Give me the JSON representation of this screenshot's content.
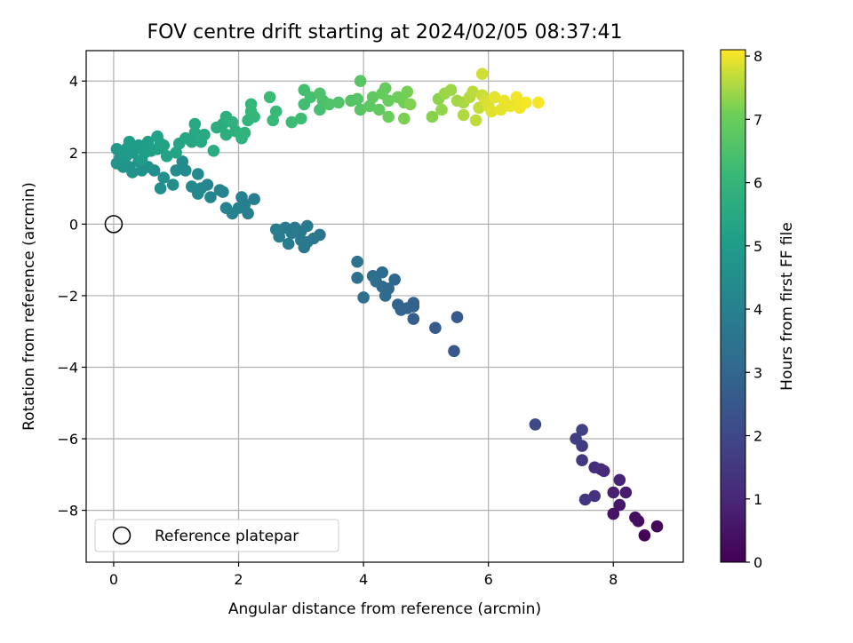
{
  "chart_data": {
    "type": "scatter",
    "title": "FOV centre drift starting at 2024/02/05 08:37:41",
    "xlabel": "Angular distance from reference (arcmin)",
    "ylabel": "Rotation from reference (arcmin)",
    "xlim": [
      -0.44,
      9.12
    ],
    "ylim": [
      -9.45,
      4.85
    ],
    "x_ticks": [
      "0",
      "2",
      "4",
      "6",
      "8"
    ],
    "y_ticks": [
      "−8",
      "−6",
      "−4",
      "−2",
      "0",
      "2",
      "4"
    ],
    "grid": true,
    "legend": {
      "placement": "lower-left",
      "entries": [
        "Reference platepar"
      ]
    },
    "reference_point": {
      "x": 0,
      "y": 0
    },
    "colorbar": {
      "label": "Hours from first FF file",
      "range": [
        0,
        8.1
      ],
      "ticks": [
        "0",
        "1",
        "2",
        "3",
        "4",
        "5",
        "6",
        "7",
        "8"
      ],
      "colormap": "viridis"
    },
    "series": [
      {
        "points": [
          [
            8.5,
            -8.7,
            0.1
          ],
          [
            8.7,
            -8.45,
            0.2
          ],
          [
            8.4,
            -8.3,
            0.3
          ],
          [
            8.35,
            -8.2,
            0.4
          ],
          [
            8.0,
            -8.1,
            0.5
          ],
          [
            8.1,
            -7.85,
            0.6
          ],
          [
            8.2,
            -7.5,
            0.7
          ],
          [
            8.0,
            -7.5,
            0.8
          ],
          [
            8.1,
            -7.15,
            0.9
          ],
          [
            7.85,
            -6.9,
            1.0
          ],
          [
            7.8,
            -6.85,
            1.1
          ],
          [
            7.7,
            -6.8,
            1.2
          ],
          [
            7.7,
            -7.6,
            1.3
          ],
          [
            7.55,
            -7.7,
            1.4
          ],
          [
            7.5,
            -6.6,
            1.5
          ],
          [
            7.5,
            -6.2,
            1.6
          ],
          [
            7.4,
            -6.0,
            1.7
          ],
          [
            7.5,
            -5.75,
            1.8
          ],
          [
            6.75,
            -5.6,
            2.0
          ],
          [
            5.45,
            -3.55,
            2.5
          ],
          [
            5.5,
            -2.6,
            2.55
          ],
          [
            5.15,
            -2.9,
            2.6
          ],
          [
            4.8,
            -2.65,
            2.7
          ],
          [
            4.8,
            -2.3,
            2.75
          ],
          [
            4.8,
            -2.2,
            2.8
          ],
          [
            4.7,
            -2.35,
            2.85
          ],
          [
            4.6,
            -2.4,
            2.9
          ],
          [
            4.55,
            -2.25,
            2.95
          ],
          [
            4.5,
            -1.55,
            3.0
          ],
          [
            4.4,
            -1.8,
            3.05
          ],
          [
            4.35,
            -2.0,
            3.1
          ],
          [
            4.3,
            -1.75,
            3.15
          ],
          [
            4.3,
            -1.35,
            3.2
          ],
          [
            4.2,
            -1.6,
            3.25
          ],
          [
            4.15,
            -1.45,
            3.3
          ],
          [
            4.0,
            -2.05,
            3.35
          ],
          [
            3.9,
            -1.5,
            3.4
          ],
          [
            3.9,
            -1.05,
            3.45
          ],
          [
            3.3,
            -0.3,
            3.6
          ],
          [
            3.2,
            -0.4,
            3.62
          ],
          [
            3.1,
            -0.5,
            3.64
          ],
          [
            3.05,
            -0.65,
            3.66
          ],
          [
            3.0,
            -0.2,
            3.68
          ],
          [
            3.0,
            -0.45,
            3.7
          ],
          [
            3.1,
            -0.05,
            3.72
          ],
          [
            2.9,
            -0.1,
            3.74
          ],
          [
            2.85,
            -0.25,
            3.76
          ],
          [
            2.8,
            -0.55,
            3.78
          ],
          [
            2.75,
            -0.1,
            3.8
          ],
          [
            2.65,
            -0.35,
            3.82
          ],
          [
            2.6,
            -0.15,
            3.84
          ],
          [
            2.25,
            0.7,
            3.9
          ],
          [
            2.15,
            0.3,
            3.93
          ],
          [
            2.1,
            0.55,
            3.96
          ],
          [
            2.05,
            0.75,
            3.99
          ],
          [
            2.0,
            0.45,
            4.02
          ],
          [
            1.9,
            0.3,
            4.05
          ],
          [
            1.8,
            0.45,
            4.08
          ],
          [
            1.75,
            0.9,
            4.11
          ],
          [
            1.7,
            0.95,
            4.14
          ],
          [
            1.55,
            0.75,
            4.17
          ],
          [
            1.5,
            1.1,
            4.2
          ],
          [
            1.4,
            1.0,
            4.23
          ],
          [
            1.35,
            0.85,
            4.26
          ],
          [
            1.35,
            1.4,
            4.29
          ],
          [
            1.25,
            1.05,
            4.32
          ],
          [
            1.15,
            1.5,
            4.35
          ],
          [
            1.1,
            1.75,
            4.38
          ],
          [
            1.0,
            1.5,
            4.41
          ],
          [
            0.95,
            1.1,
            4.44
          ],
          [
            0.8,
            1.3,
            4.47
          ],
          [
            0.75,
            1.0,
            4.5
          ],
          [
            0.65,
            1.5,
            4.53
          ],
          [
            0.55,
            1.6,
            4.56
          ],
          [
            0.45,
            1.5,
            4.59
          ],
          [
            0.4,
            1.75,
            4.62
          ],
          [
            0.3,
            1.45,
            4.65
          ],
          [
            0.25,
            1.6,
            4.68
          ],
          [
            0.15,
            1.6,
            4.71
          ],
          [
            0.05,
            1.7,
            4.74
          ],
          [
            0.1,
            1.85,
            4.77
          ],
          [
            0.2,
            1.9,
            4.8
          ],
          [
            0.15,
            2.0,
            4.83
          ],
          [
            0.3,
            2.0,
            4.86
          ],
          [
            0.05,
            2.1,
            4.89
          ],
          [
            0.2,
            2.1,
            4.92
          ],
          [
            0.35,
            2.1,
            4.95
          ],
          [
            0.25,
            2.3,
            4.98
          ],
          [
            0.4,
            2.2,
            5.01
          ],
          [
            0.45,
            1.8,
            5.04
          ],
          [
            0.5,
            2.0,
            5.07
          ],
          [
            0.55,
            2.3,
            5.1
          ],
          [
            0.6,
            2.05,
            5.13
          ],
          [
            0.7,
            2.1,
            5.16
          ],
          [
            0.75,
            2.25,
            5.19
          ],
          [
            0.7,
            2.45,
            5.22
          ],
          [
            0.8,
            2.2,
            5.25
          ],
          [
            0.85,
            1.9,
            5.28
          ],
          [
            1.0,
            2.0,
            5.31
          ],
          [
            1.05,
            2.25,
            5.34
          ],
          [
            1.15,
            2.4,
            5.37
          ],
          [
            1.25,
            2.3,
            5.4
          ],
          [
            1.3,
            2.55,
            5.43
          ],
          [
            1.4,
            2.3,
            5.46
          ],
          [
            1.45,
            2.5,
            5.49
          ],
          [
            1.3,
            2.8,
            5.52
          ],
          [
            1.6,
            2.05,
            5.58
          ],
          [
            1.65,
            2.7,
            5.62
          ],
          [
            1.75,
            2.8,
            5.66
          ],
          [
            1.8,
            2.5,
            5.7
          ],
          [
            1.8,
            3.0,
            5.74
          ],
          [
            1.9,
            2.85,
            5.78
          ],
          [
            1.95,
            2.6,
            5.82
          ],
          [
            2.05,
            2.4,
            5.86
          ],
          [
            2.1,
            2.55,
            5.9
          ],
          [
            2.15,
            2.9,
            5.94
          ],
          [
            2.25,
            3.0,
            5.98
          ],
          [
            2.2,
            3.15,
            6.02
          ],
          [
            2.2,
            3.35,
            6.06
          ],
          [
            2.55,
            2.9,
            6.1
          ],
          [
            2.6,
            3.15,
            6.14
          ],
          [
            2.5,
            3.55,
            6.18
          ],
          [
            2.85,
            2.85,
            6.22
          ],
          [
            3.0,
            2.95,
            6.26
          ],
          [
            3.05,
            3.35,
            6.3
          ],
          [
            3.05,
            3.75,
            6.34
          ],
          [
            3.15,
            3.55,
            6.38
          ],
          [
            3.3,
            3.2,
            6.42
          ],
          [
            3.35,
            3.45,
            6.46
          ],
          [
            3.3,
            3.65,
            6.5
          ],
          [
            3.45,
            3.35,
            6.54
          ],
          [
            3.6,
            3.4,
            6.58
          ],
          [
            3.8,
            3.45,
            6.62
          ],
          [
            3.9,
            3.5,
            6.66
          ],
          [
            3.95,
            3.2,
            6.7
          ],
          [
            3.95,
            4.0,
            6.74
          ],
          [
            4.1,
            3.3,
            6.78
          ],
          [
            4.15,
            3.55,
            6.82
          ],
          [
            4.25,
            3.2,
            6.86
          ],
          [
            4.3,
            3.65,
            6.9
          ],
          [
            4.35,
            3.8,
            6.94
          ],
          [
            4.4,
            3.45,
            6.98
          ],
          [
            4.4,
            3.0,
            7.02
          ],
          [
            4.55,
            3.55,
            7.06
          ],
          [
            4.65,
            3.4,
            7.1
          ],
          [
            4.7,
            3.7,
            7.14
          ],
          [
            4.65,
            2.95,
            7.18
          ],
          [
            4.75,
            3.35,
            7.22
          ],
          [
            5.1,
            3.0,
            7.26
          ],
          [
            5.2,
            3.5,
            7.3
          ],
          [
            5.25,
            3.2,
            7.34
          ],
          [
            5.3,
            3.65,
            7.38
          ],
          [
            5.4,
            3.75,
            7.42
          ],
          [
            5.5,
            3.45,
            7.46
          ],
          [
            5.6,
            3.4,
            7.5
          ],
          [
            5.6,
            3.05,
            7.54
          ],
          [
            5.7,
            3.55,
            7.58
          ],
          [
            5.75,
            3.7,
            7.62
          ],
          [
            5.8,
            2.9,
            7.66
          ],
          [
            5.85,
            3.25,
            7.7
          ],
          [
            5.9,
            3.6,
            7.74
          ],
          [
            5.9,
            4.2,
            7.78
          ],
          [
            5.95,
            3.45,
            7.82
          ],
          [
            6.0,
            3.3,
            7.86
          ],
          [
            6.05,
            3.15,
            7.9
          ],
          [
            6.1,
            3.55,
            7.92
          ],
          [
            6.2,
            3.2,
            7.94
          ],
          [
            6.25,
            3.45,
            7.96
          ],
          [
            6.35,
            3.3,
            7.98
          ],
          [
            6.45,
            3.55,
            8.0
          ],
          [
            6.5,
            3.25,
            8.02
          ],
          [
            6.6,
            3.4,
            8.04
          ],
          [
            6.8,
            3.4,
            8.06
          ]
        ]
      }
    ]
  }
}
